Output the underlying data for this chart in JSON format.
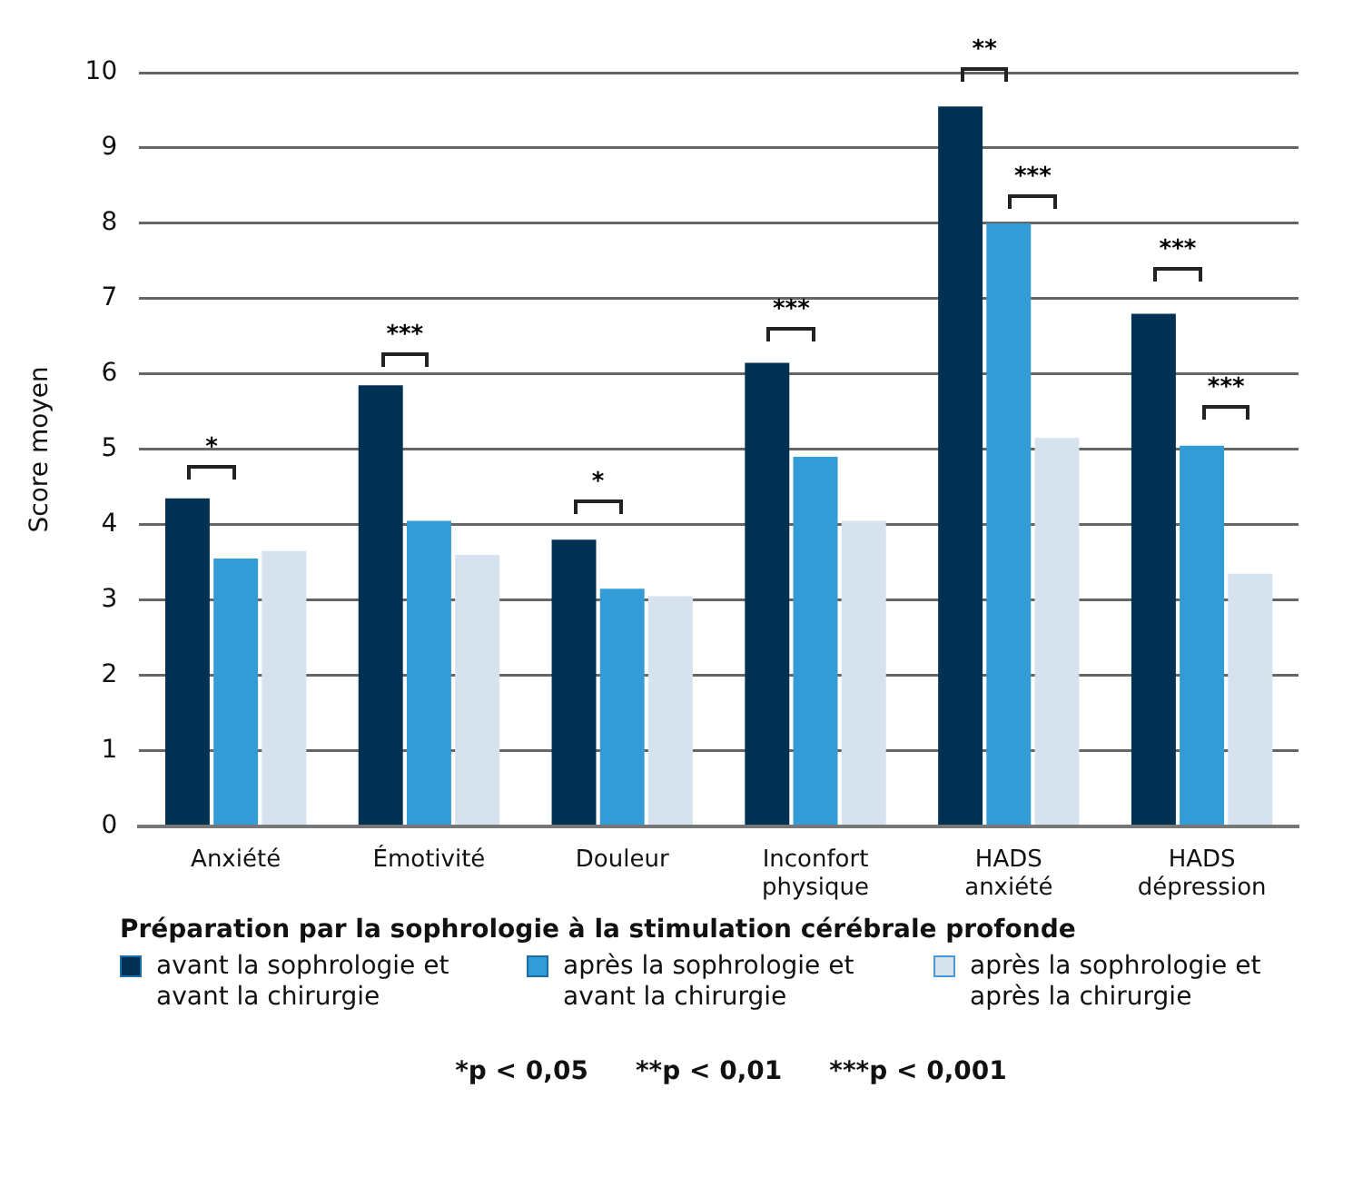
{
  "chart_data": {
    "type": "bar",
    "ylabel": "Score moyen",
    "legend_title": "Préparation par la sophrologie à la stimulation cérébrale profonde",
    "categories": [
      "Anxiété",
      "Émotivité",
      "Douleur",
      "Inconfort physique",
      "HADS anxiété",
      "HADS dépression"
    ],
    "series": [
      {
        "name": "avant la sophrologie et avant la chirurgie",
        "color": "#003152",
        "values": [
          4.35,
          5.85,
          3.8,
          6.15,
          9.55,
          6.8
        ]
      },
      {
        "name": "après la sophrologie et avant la chirurgie",
        "color": "#339cd6",
        "values": [
          3.55,
          4.05,
          3.15,
          4.9,
          8.0,
          5.05
        ]
      },
      {
        "name": "après la sophrologie et après la chirurgie",
        "color": "#d6e2ee",
        "values": [
          3.65,
          3.6,
          3.05,
          4.05,
          5.15,
          3.35
        ]
      }
    ],
    "ylim": [
      0,
      10
    ],
    "yticks": [
      0,
      1,
      2,
      3,
      4,
      5,
      6,
      7,
      8,
      9,
      10
    ],
    "grid": "y",
    "legend": "bottom",
    "annotations": [
      "*",
      "***",
      "*",
      "***",
      "**",
      "***",
      "***",
      "***",
      "*p < 0,05",
      "**p < 0,01",
      "***p < 0,001"
    ]
  }
}
